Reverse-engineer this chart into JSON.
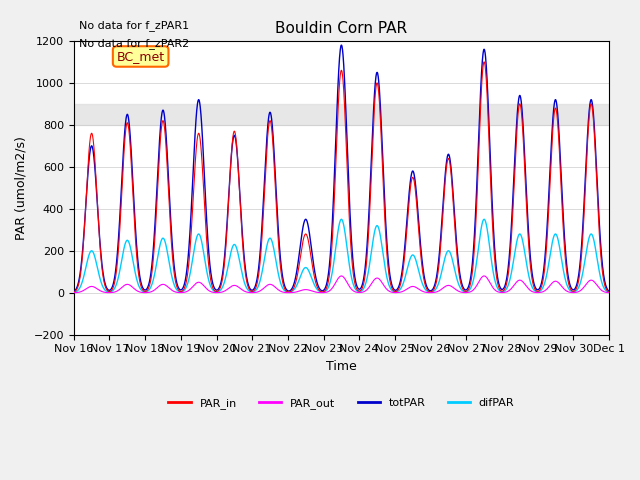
{
  "title": "Bouldin Corn PAR",
  "xlabel": "Time",
  "ylabel": "PAR (umol/m2/s)",
  "ylim": [
    -200,
    1200
  ],
  "xlim": [
    0,
    15
  ],
  "yticks": [
    -200,
    0,
    200,
    400,
    600,
    800,
    1000,
    1200
  ],
  "shade_band": [
    800,
    900
  ],
  "background_color": "#f0f0f0",
  "plot_bg_color": "#ffffff",
  "annotation_text": "BC_met",
  "text_no_data1": "No data for f_zPAR1",
  "text_no_data2": "No data for f_zPAR2",
  "legend_entries": [
    "PAR_in",
    "PAR_out",
    "totPAR",
    "difPAR"
  ],
  "legend_colors": [
    "#ff0000",
    "#ff00ff",
    "#0000cc",
    "#00ccff"
  ],
  "date_labels": [
    "Nov 16",
    "Nov 17",
    "Nov 18",
    "Nov 19",
    "Nov 20",
    "Nov 21",
    "Nov 22",
    "Nov 23",
    "Nov 24",
    "Nov 25",
    "Nov 26",
    "Nov 27",
    "Nov 28",
    "Nov 29",
    "Nov 30",
    "Dec 1"
  ],
  "num_days": 15,
  "tot_peaks": [
    700,
    850,
    870,
    920,
    750,
    860,
    350,
    1180,
    1050,
    580,
    660,
    1160,
    940,
    920,
    920
  ],
  "dif_peaks": [
    200,
    250,
    260,
    280,
    230,
    260,
    120,
    350,
    320,
    180,
    200,
    350,
    280,
    280,
    280
  ],
  "in_peaks": [
    760,
    810,
    820,
    760,
    770,
    820,
    280,
    1060,
    1000,
    550,
    640,
    1100,
    900,
    880,
    900
  ],
  "out_peaks": [
    30,
    40,
    40,
    50,
    35,
    40,
    15,
    80,
    70,
    30,
    35,
    80,
    60,
    55,
    60
  ]
}
